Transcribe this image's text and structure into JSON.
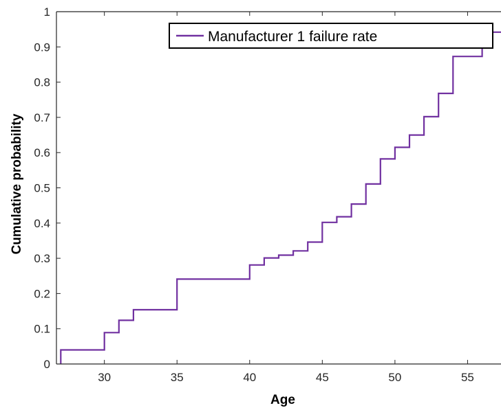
{
  "chart_data": {
    "type": "line",
    "step": true,
    "title": "",
    "xlabel": "Age",
    "ylabel": "Cumulative probability",
    "xlim": [
      26.7,
      57.3
    ],
    "ylim": [
      0,
      1
    ],
    "xticks": [
      30,
      35,
      40,
      45,
      50,
      55
    ],
    "yticks": [
      0,
      0.1,
      0.2,
      0.3,
      0.4,
      0.5,
      0.6,
      0.7,
      0.8,
      0.9,
      1
    ],
    "ytick_labels": [
      "0",
      "0.1",
      "0.2",
      "0.3",
      "0.4",
      "0.5",
      "0.6",
      "0.7",
      "0.8",
      "0.9",
      "1"
    ],
    "grid": false,
    "legend_position": "top-right",
    "series": [
      {
        "name": "Manufacturer 1 failure rate",
        "color": "#7030a0",
        "x": [
          27,
          30,
          31,
          32,
          35,
          40,
          41,
          42,
          43,
          44,
          45,
          46,
          47,
          48,
          49,
          50,
          51,
          52,
          53,
          54,
          56,
          57.3
        ],
        "y": [
          0.04,
          0.089,
          0.124,
          0.154,
          0.241,
          0.281,
          0.301,
          0.309,
          0.321,
          0.346,
          0.402,
          0.418,
          0.454,
          0.511,
          0.582,
          0.615,
          0.65,
          0.702,
          0.768,
          0.873,
          0.942,
          0.942
        ]
      }
    ]
  }
}
